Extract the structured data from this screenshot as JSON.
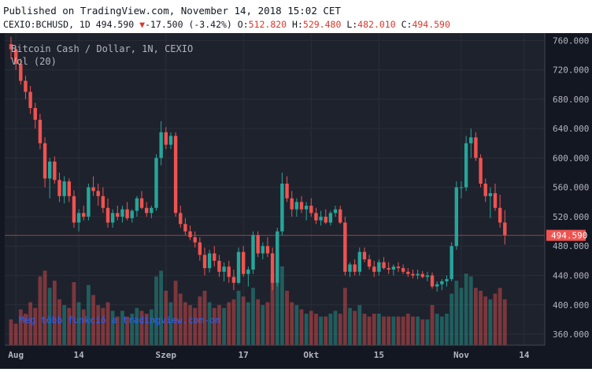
{
  "header": {
    "published": "Published on TradingView.com, November 14, 2018 15:02 CET",
    "symbol": "CEXIO:BCHUSD, 1D",
    "last": "494.590",
    "change": "-17.500 (-3.42%)",
    "o_label": "O:",
    "o_value": "512.820",
    "h_label": "H:",
    "h_value": "529.480",
    "l_label": "L:",
    "l_value": "482.010",
    "c_label": "C:",
    "c_value": "494.590"
  },
  "legend": {
    "title": "Bitcoin Cash / Dollar, 1N, CEXIO",
    "volume": "Vol (20)"
  },
  "watermark": "Még több funkció a tradingview.com-on",
  "price_tag": "494.590",
  "colors": {
    "up": "#26a69a",
    "down": "#ef5350",
    "background": "#1e222d",
    "grid": "#2a2e39",
    "panel": "#131722"
  },
  "chart_data": {
    "type": "candlestick",
    "y_ticks": [
      360,
      400,
      440,
      480,
      520,
      560,
      600,
      640,
      680,
      720,
      760
    ],
    "y_tick_labels": [
      "360.000",
      "400.000",
      "440.000",
      "480.000",
      "520.000",
      "560.000",
      "600.000",
      "640.000",
      "680.000",
      "720.000",
      "760.000"
    ],
    "x_ticks": [
      {
        "label": "Aug",
        "index": 1
      },
      {
        "label": "14",
        "index": 14
      },
      {
        "label": "Szep",
        "index": 32
      },
      {
        "label": "17",
        "index": 48
      },
      {
        "label": "Okt",
        "index": 62
      },
      {
        "label": "15",
        "index": 76
      },
      {
        "label": "Nov",
        "index": 93
      },
      {
        "label": "14",
        "index": 106
      }
    ],
    "ylim": [
      345,
      770
    ],
    "last_price": 494.59,
    "candles": [
      [
        755,
        765,
        735,
        748,
        18
      ],
      [
        748,
        752,
        720,
        728,
        15
      ],
      [
        728,
        735,
        700,
        705,
        25
      ],
      [
        705,
        712,
        680,
        690,
        22
      ],
      [
        690,
        698,
        660,
        668,
        30
      ],
      [
        668,
        675,
        640,
        652,
        26
      ],
      [
        652,
        660,
        612,
        620,
        48
      ],
      [
        620,
        628,
        560,
        572,
        52
      ],
      [
        572,
        600,
        545,
        595,
        40
      ],
      [
        595,
        602,
        565,
        570,
        45
      ],
      [
        570,
        580,
        540,
        548,
        32
      ],
      [
        548,
        575,
        538,
        568,
        28
      ],
      [
        568,
        572,
        540,
        548,
        26
      ],
      [
        548,
        556,
        505,
        512,
        44
      ],
      [
        512,
        530,
        500,
        525,
        30
      ],
      [
        525,
        535,
        515,
        520,
        25
      ],
      [
        520,
        565,
        515,
        560,
        42
      ],
      [
        560,
        575,
        548,
        555,
        35
      ],
      [
        555,
        565,
        535,
        548,
        28
      ],
      [
        548,
        560,
        525,
        532,
        26
      ],
      [
        532,
        545,
        505,
        512,
        30
      ],
      [
        512,
        530,
        505,
        525,
        24
      ],
      [
        525,
        535,
        515,
        520,
        20
      ],
      [
        520,
        535,
        512,
        530,
        24
      ],
      [
        530,
        540,
        515,
        518,
        20
      ],
      [
        518,
        530,
        512,
        528,
        22
      ],
      [
        528,
        548,
        520,
        545,
        26
      ],
      [
        545,
        555,
        530,
        532,
        24
      ],
      [
        532,
        540,
        520,
        525,
        22
      ],
      [
        525,
        535,
        518,
        532,
        25
      ],
      [
        532,
        605,
        528,
        600,
        48
      ],
      [
        600,
        650,
        590,
        635,
        52
      ],
      [
        635,
        642,
        612,
        618,
        38
      ],
      [
        618,
        635,
        612,
        630,
        30
      ],
      [
        630,
        635,
        520,
        525,
        45
      ],
      [
        525,
        535,
        505,
        510,
        36
      ],
      [
        510,
        518,
        495,
        500,
        30
      ],
      [
        500,
        508,
        488,
        492,
        28
      ],
      [
        492,
        500,
        478,
        485,
        26
      ],
      [
        485,
        492,
        460,
        468,
        34
      ],
      [
        468,
        478,
        440,
        450,
        38
      ],
      [
        450,
        475,
        444,
        470,
        30
      ],
      [
        470,
        480,
        452,
        460,
        26
      ],
      [
        460,
        468,
        438,
        445,
        28
      ],
      [
        445,
        458,
        432,
        452,
        26
      ],
      [
        452,
        460,
        430,
        438,
        30
      ],
      [
        438,
        448,
        420,
        430,
        32
      ],
      [
        430,
        478,
        428,
        472,
        38
      ],
      [
        472,
        480,
        438,
        442,
        34
      ],
      [
        442,
        452,
        425,
        448,
        30
      ],
      [
        448,
        500,
        442,
        495,
        40
      ],
      [
        495,
        500,
        465,
        470,
        32
      ],
      [
        470,
        485,
        462,
        480,
        28
      ],
      [
        480,
        492,
        465,
        470,
        30
      ],
      [
        470,
        478,
        420,
        430,
        50
      ],
      [
        430,
        505,
        425,
        500,
        44
      ],
      [
        500,
        580,
        495,
        565,
        55
      ],
      [
        565,
        575,
        540,
        545,
        38
      ],
      [
        545,
        555,
        520,
        530,
        30
      ],
      [
        530,
        545,
        520,
        540,
        28
      ],
      [
        540,
        548,
        525,
        530,
        25
      ],
      [
        530,
        540,
        515,
        535,
        22
      ],
      [
        535,
        545,
        520,
        525,
        24
      ],
      [
        525,
        532,
        510,
        515,
        22
      ],
      [
        515,
        528,
        508,
        520,
        20
      ],
      [
        520,
        530,
        510,
        512,
        20
      ],
      [
        512,
        528,
        508,
        525,
        22
      ],
      [
        525,
        535,
        520,
        530,
        24
      ],
      [
        530,
        535,
        510,
        512,
        22
      ],
      [
        512,
        520,
        440,
        445,
        40
      ],
      [
        445,
        458,
        438,
        455,
        26
      ],
      [
        455,
        462,
        440,
        445,
        24
      ],
      [
        445,
        478,
        440,
        472,
        28
      ],
      [
        472,
        478,
        458,
        462,
        22
      ],
      [
        462,
        468,
        448,
        452,
        20
      ],
      [
        452,
        460,
        438,
        445,
        22
      ],
      [
        445,
        462,
        440,
        458,
        22
      ],
      [
        458,
        465,
        448,
        450,
        20
      ],
      [
        450,
        458,
        442,
        448,
        20
      ],
      [
        448,
        455,
        440,
        452,
        20
      ],
      [
        452,
        458,
        445,
        450,
        20
      ],
      [
        450,
        455,
        442,
        445,
        20
      ],
      [
        445,
        450,
        438,
        442,
        22
      ],
      [
        442,
        448,
        436,
        440,
        20
      ],
      [
        440,
        448,
        435,
        442,
        20
      ],
      [
        442,
        446,
        436,
        438,
        18
      ],
      [
        438,
        445,
        432,
        440,
        18
      ],
      [
        440,
        444,
        422,
        425,
        28
      ],
      [
        425,
        432,
        418,
        428,
        22
      ],
      [
        428,
        435,
        420,
        432,
        20
      ],
      [
        432,
        440,
        425,
        435,
        22
      ],
      [
        435,
        485,
        432,
        480,
        36
      ],
      [
        480,
        568,
        475,
        560,
        45
      ],
      [
        560,
        568,
        545,
        560,
        40
      ],
      [
        560,
        630,
        555,
        620,
        50
      ],
      [
        620,
        640,
        600,
        628,
        48
      ],
      [
        628,
        635,
        596,
        600,
        40
      ],
      [
        600,
        605,
        560,
        565,
        38
      ],
      [
        565,
        572,
        540,
        548,
        34
      ],
      [
        548,
        560,
        518,
        552,
        32
      ],
      [
        552,
        565,
        528,
        532,
        36
      ],
      [
        532,
        550,
        505,
        512,
        40
      ],
      [
        512,
        529,
        482,
        495,
        32
      ]
    ]
  }
}
